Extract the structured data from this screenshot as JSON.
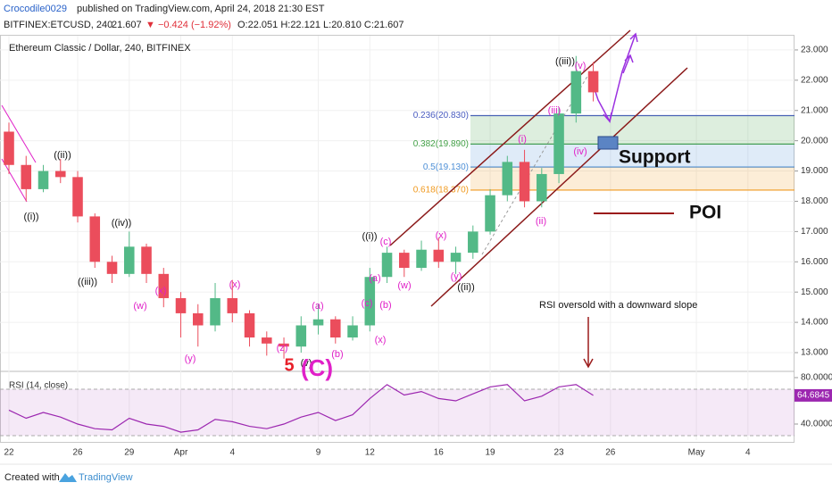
{
  "header": {
    "author": "Crocodile0029",
    "published": "published on TradingView.com, April 24, 2018 21:30 EST",
    "symbol": "BITFINEX:ETCUSD, 240",
    "last": "21.607",
    "change": "▼ −0.424 (−1.92%)",
    "ohlc": "O:22.051 H:22.121 L:20.810 C:21.607"
  },
  "footer": {
    "created": "Created with",
    "brand": "TradingView"
  },
  "chart_data": {
    "type": "candlestick",
    "title": "Ethereum Classic / Dollar, 240, BITFINEX",
    "x": [
      0,
      1,
      2,
      3,
      4,
      5,
      6,
      7,
      8,
      9,
      10,
      11,
      12,
      13,
      14,
      15,
      16,
      17,
      18,
      19,
      20,
      21,
      22,
      23,
      24,
      25,
      26,
      27,
      28,
      29,
      30,
      31,
      32,
      33,
      34
    ],
    "open": [
      20.3,
      19.2,
      18.4,
      19.0,
      18.8,
      17.5,
      16.0,
      15.6,
      16.5,
      15.6,
      14.8,
      14.3,
      13.9,
      14.8,
      14.3,
      13.5,
      13.3,
      13.2,
      13.9,
      14.1,
      13.5,
      13.9,
      15.5,
      16.3,
      15.8,
      16.4,
      16.0,
      16.3,
      17.0,
      18.2,
      19.3,
      18.0,
      18.9,
      20.9,
      22.3
    ],
    "high": [
      20.6,
      19.5,
      19.2,
      19.4,
      19.0,
      17.6,
      16.2,
      17.0,
      16.6,
      15.8,
      15.0,
      14.6,
      15.3,
      15.4,
      14.4,
      13.7,
      13.5,
      14.2,
      14.6,
      14.2,
      14.2,
      15.8,
      16.5,
      16.4,
      16.7,
      16.8,
      16.5,
      17.2,
      18.4,
      19.5,
      19.7,
      19.1,
      21.1,
      22.8,
      22.6
    ],
    "low": [
      18.9,
      18.0,
      18.3,
      18.6,
      17.3,
      15.8,
      15.3,
      15.5,
      15.3,
      14.5,
      13.5,
      13.2,
      13.7,
      14.0,
      13.2,
      12.9,
      12.8,
      13.0,
      13.6,
      13.3,
      13.4,
      13.7,
      15.3,
      15.5,
      15.7,
      15.8,
      15.6,
      16.1,
      16.9,
      18.0,
      17.8,
      17.8,
      18.6,
      20.6,
      21.3
    ],
    "close": [
      19.2,
      18.4,
      19.0,
      18.8,
      17.5,
      16.0,
      15.6,
      16.5,
      15.6,
      14.8,
      14.3,
      13.9,
      14.8,
      14.3,
      13.5,
      13.3,
      13.2,
      13.9,
      14.1,
      13.5,
      13.9,
      15.5,
      16.3,
      15.8,
      16.4,
      16.0,
      16.3,
      17.0,
      18.2,
      19.3,
      18.0,
      18.9,
      20.9,
      22.3,
      21.6
    ],
    "up_color": "#53b987",
    "down_color": "#eb4d5c",
    "xlim": [
      -0.52,
      45.71
    ],
    "ylim": [
      12.41,
      23.47
    ],
    "xticks": [
      {
        "value": 0,
        "label": "22"
      },
      {
        "value": 4,
        "label": "26"
      },
      {
        "value": 7,
        "label": "29"
      },
      {
        "value": 10,
        "label": "Apr"
      },
      {
        "value": 13,
        "label": "4"
      },
      {
        "value": 18,
        "label": "9"
      },
      {
        "value": 21,
        "label": "12"
      },
      {
        "value": 25,
        "label": "16"
      },
      {
        "value": 28,
        "label": "19"
      },
      {
        "value": 32,
        "label": "23"
      },
      {
        "value": 35,
        "label": "26"
      },
      {
        "value": 40,
        "label": "May"
      },
      {
        "value": 43,
        "label": "4"
      }
    ],
    "yticks": [
      {
        "value": 13,
        "label": "13.000"
      },
      {
        "value": 14,
        "label": "14.000"
      },
      {
        "value": 15,
        "label": "15.000"
      },
      {
        "value": 16,
        "label": "16.000"
      },
      {
        "value": 17,
        "label": "17.000"
      },
      {
        "value": 18,
        "label": "18.000"
      },
      {
        "value": 19,
        "label": "19.000"
      },
      {
        "value": 20,
        "label": "20.000"
      },
      {
        "value": 21,
        "label": "21.000"
      },
      {
        "value": 22,
        "label": "22.000"
      },
      {
        "value": 23,
        "label": "23.000"
      }
    ],
    "fib_levels": [
      {
        "label": "0.236(20.830)",
        "price": 20.83,
        "color": "#4a5cc0"
      },
      {
        "label": "0.382(19.890)",
        "price": 19.89,
        "color": "#43a047"
      },
      {
        "label": "0.5(19.130)",
        "price": 19.13,
        "color": "#4d8fd6"
      },
      {
        "label": "0.618(18.370)",
        "price": 18.37,
        "color": "#f09a20"
      }
    ],
    "waves": [
      {
        "text": "((i))",
        "color": "#111"
      },
      {
        "text": "((ii))",
        "color": "#111"
      },
      {
        "text": "((iii))",
        "color": "#111"
      },
      {
        "text": "((iv))",
        "color": "#111"
      },
      {
        "text": "((i))",
        "color": "#111"
      },
      {
        "text": "((ii))",
        "color": "#111"
      },
      {
        "text": "((iii))",
        "color": "#111"
      },
      {
        "text": "(v)",
        "color": "#111"
      },
      {
        "text": "(w)",
        "color": "#e020c8"
      },
      {
        "text": "(x)",
        "color": "#e020c8"
      },
      {
        "text": "(y)",
        "color": "#e020c8"
      },
      {
        "text": "(x)",
        "color": "#e020c8"
      },
      {
        "text": "(z)",
        "color": "#e020c8"
      },
      {
        "text": "(a)",
        "color": "#e020c8"
      },
      {
        "text": "(b)",
        "color": "#e020c8"
      },
      {
        "text": "(c)",
        "color": "#e020c8"
      },
      {
        "text": "(b)",
        "color": "#e020c8"
      },
      {
        "text": "(a)",
        "color": "#e020c8"
      },
      {
        "text": "(x)",
        "color": "#e020c8"
      },
      {
        "text": "(c)",
        "color": "#e020c8"
      },
      {
        "text": "(w)",
        "color": "#e020c8"
      },
      {
        "text": "(x)",
        "color": "#e020c8"
      },
      {
        "text": "(y)",
        "color": "#e020c8"
      },
      {
        "text": "(i)",
        "color": "#e020c8"
      },
      {
        "text": "(ii)",
        "color": "#e020c8"
      },
      {
        "text": "(iii)",
        "color": "#e020c8"
      },
      {
        "text": "(iv)",
        "color": "#e020c8"
      },
      {
        "text": "(v)",
        "color": "#e020c8"
      },
      {
        "text": "5",
        "color": "#e8202a"
      },
      {
        "text": "(C)",
        "color": "#e020c8"
      }
    ],
    "annotations": {
      "support": "Support",
      "poi": "POI",
      "rsi_note": "RSI oversold with a downward slope"
    },
    "rsi": {
      "name": "RSI (14, close)",
      "color": "#9c27b0",
      "values": [
        52,
        45,
        50,
        46,
        40,
        36,
        35,
        45,
        40,
        38,
        33,
        35,
        44,
        42,
        38,
        36,
        40,
        46,
        50,
        43,
        48,
        62,
        74,
        65,
        68,
        62,
        60,
        66,
        72,
        74,
        60,
        64,
        72,
        74,
        64.6845
      ],
      "ylim": [
        26.15,
        83.85
      ],
      "yticks": [
        {
          "value": 80,
          "label": "80.0000"
        },
        {
          "value": 40,
          "label": "40.0000"
        }
      ],
      "bands": [
        30,
        70
      ]
    }
  }
}
